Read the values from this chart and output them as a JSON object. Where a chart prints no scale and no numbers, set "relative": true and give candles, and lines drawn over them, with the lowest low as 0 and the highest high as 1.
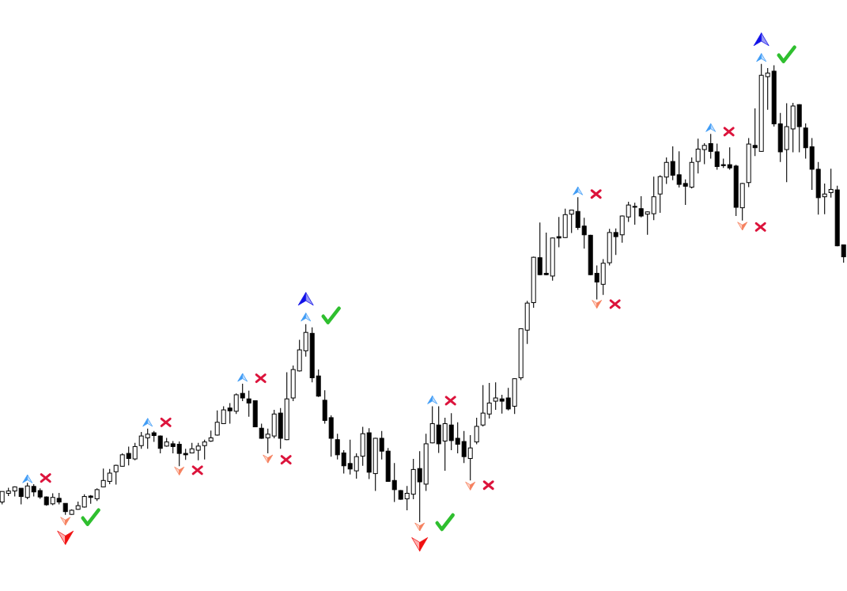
{
  "chart_data": {
    "type": "candlestick",
    "relative": true,
    "categories": [
      null,
      null,
      null,
      null,
      null,
      null,
      null,
      null,
      null,
      null,
      null,
      null,
      null,
      null,
      null,
      null,
      null,
      null,
      null,
      null,
      null,
      null,
      null,
      null,
      null,
      null,
      null,
      null,
      null,
      null,
      null,
      null,
      null,
      null,
      null,
      null,
      null,
      null,
      null,
      null,
      null,
      null,
      null,
      null,
      null,
      null,
      null,
      null,
      null,
      null,
      null,
      null,
      null,
      null,
      null,
      null,
      null,
      null,
      null,
      null,
      null,
      null,
      null,
      null,
      null,
      null,
      null,
      null,
      null,
      null,
      null,
      null,
      null,
      null,
      null,
      null,
      null,
      null,
      null,
      null,
      null,
      null,
      null,
      null,
      null,
      null,
      null,
      null,
      null,
      null,
      null,
      null,
      null,
      null,
      null,
      null,
      null,
      null,
      null,
      null,
      null,
      null,
      null,
      null,
      null,
      null,
      null,
      null,
      null,
      null,
      null,
      null,
      null,
      null,
      null,
      null,
      null,
      null,
      null,
      null,
      null,
      null,
      null,
      null,
      null,
      null,
      null,
      null,
      null,
      null,
      null,
      null,
      null,
      null
    ],
    "ohlc": [
      [
        0.044,
        0.067,
        0.039,
        0.067
      ],
      [
        0.063,
        0.075,
        0.057,
        0.068
      ],
      [
        0.068,
        0.078,
        0.056,
        0.077
      ],
      [
        0.074,
        0.074,
        0.039,
        0.056
      ],
      [
        0.054,
        0.086,
        0.05,
        0.079
      ],
      [
        0.078,
        0.083,
        0.056,
        0.066
      ],
      [
        0.069,
        0.074,
        0.051,
        0.055
      ],
      [
        0.055,
        0.056,
        0.036,
        0.038
      ],
      [
        0.04,
        0.063,
        0.037,
        0.054
      ],
      [
        0.052,
        0.064,
        0.039,
        0.044
      ],
      [
        0.041,
        0.041,
        0.016,
        0.023
      ],
      [
        0.017,
        0.028,
        0.016,
        0.026
      ],
      [
        0.028,
        0.045,
        0.027,
        0.036
      ],
      [
        0.033,
        0.061,
        0.032,
        0.056
      ],
      [
        0.057,
        0.059,
        0.04,
        0.054
      ],
      [
        0.051,
        0.074,
        0.046,
        0.071
      ],
      [
        0.077,
        0.117,
        0.076,
        0.091
      ],
      [
        0.089,
        0.116,
        0.083,
        0.107
      ],
      [
        0.11,
        0.125,
        0.082,
        0.124
      ],
      [
        0.122,
        0.15,
        0.121,
        0.147
      ],
      [
        0.15,
        0.165,
        0.124,
        0.139
      ],
      [
        0.138,
        0.173,
        0.135,
        0.165
      ],
      [
        0.167,
        0.197,
        0.16,
        0.188
      ],
      [
        0.184,
        0.204,
        0.16,
        0.192
      ],
      [
        0.195,
        0.199,
        0.175,
        0.189
      ],
      [
        0.188,
        0.189,
        0.15,
        0.161
      ],
      [
        0.166,
        0.184,
        0.165,
        0.175
      ],
      [
        0.171,
        0.177,
        0.15,
        0.165
      ],
      [
        0.17,
        0.176,
        0.122,
        0.15
      ],
      [
        0.15,
        0.16,
        0.136,
        0.147
      ],
      [
        0.151,
        0.173,
        0.15,
        0.16
      ],
      [
        0.157,
        0.173,
        0.135,
        0.166
      ],
      [
        0.167,
        0.18,
        0.137,
        0.175
      ],
      [
        0.177,
        0.2,
        0.175,
        0.184
      ],
      [
        0.19,
        0.244,
        0.189,
        0.218
      ],
      [
        0.215,
        0.253,
        0.214,
        0.245
      ],
      [
        0.249,
        0.26,
        0.215,
        0.243
      ],
      [
        0.242,
        0.281,
        0.236,
        0.278
      ],
      [
        0.281,
        0.302,
        0.264,
        0.271
      ],
      [
        0.269,
        0.287,
        0.23,
        0.26
      ],
      [
        0.265,
        0.266,
        0.207,
        0.208
      ],
      [
        0.205,
        0.215,
        0.182,
        0.183
      ],
      [
        0.184,
        0.204,
        0.15,
        0.192
      ],
      [
        0.188,
        0.245,
        0.183,
        0.236
      ],
      [
        0.238,
        0.249,
        0.16,
        0.183
      ],
      [
        0.18,
        0.327,
        0.179,
        0.269
      ],
      [
        0.271,
        0.342,
        0.264,
        0.333
      ],
      [
        0.33,
        0.398,
        0.329,
        0.376
      ],
      [
        0.374,
        0.432,
        0.361,
        0.414
      ],
      [
        0.412,
        0.425,
        0.305,
        0.315
      ],
      [
        0.319,
        0.333,
        0.273,
        0.275
      ],
      [
        0.266,
        0.288,
        0.215,
        0.222
      ],
      [
        0.228,
        0.233,
        0.143,
        0.183
      ],
      [
        0.18,
        0.193,
        0.137,
        0.147
      ],
      [
        0.151,
        0.157,
        0.106,
        0.123
      ],
      [
        0.128,
        0.18,
        0.104,
        0.116
      ],
      [
        0.112,
        0.15,
        0.095,
        0.143
      ],
      [
        0.144,
        0.208,
        0.123,
        0.193
      ],
      [
        0.195,
        0.205,
        0.094,
        0.109
      ],
      [
        0.106,
        0.184,
        0.068,
        0.183
      ],
      [
        0.183,
        0.199,
        0.137,
        0.155
      ],
      [
        0.155,
        0.162,
        0.088,
        0.089
      ],
      [
        0.091,
        0.129,
        0.044,
        0.071
      ],
      [
        0.069,
        0.07,
        0.049,
        0.05
      ],
      [
        0.051,
        0.079,
        0.026,
        0.063
      ],
      [
        0.061,
        0.138,
        0.05,
        0.115
      ],
      [
        0.117,
        0.155,
        0,
        0.088
      ],
      [
        0.083,
        0.193,
        0.068,
        0.171
      ],
      [
        0.173,
        0.253,
        0.172,
        0.215
      ],
      [
        0.212,
        0.253,
        0.151,
        0.171
      ],
      [
        0.177,
        0.228,
        0.112,
        0.215
      ],
      [
        0.212,
        0.238,
        0.157,
        0.178
      ],
      [
        0.183,
        0.218,
        0.15,
        0.17
      ],
      [
        0.176,
        0.199,
        0.129,
        0.143
      ],
      [
        0.139,
        0.19,
        0.091,
        0.162
      ],
      [
        0.175,
        0.228,
        0.17,
        0.209
      ],
      [
        0.212,
        0.299,
        0.209,
        0.238
      ],
      [
        0.236,
        0.304,
        0.226,
        0.26
      ],
      [
        0.264,
        0.305,
        0.245,
        0.271
      ],
      [
        0.269,
        0.278,
        0.237,
        0.264
      ],
      [
        0.271,
        0.293,
        0.244,
        0.247
      ],
      [
        0.253,
        0.314,
        0.236,
        0.313
      ],
      [
        0.315,
        0.423,
        0.31,
        0.422
      ],
      [
        0.419,
        0.483,
        0.389,
        0.478
      ],
      [
        0.479,
        0.579,
        0.468,
        0.578
      ],
      [
        0.577,
        0.654,
        0.539,
        0.54
      ],
      [
        0.543,
        0.632,
        0.539,
        0.54
      ],
      [
        0.537,
        0.621,
        0.527,
        0.62
      ],
      [
        0.623,
        0.666,
        0.6,
        0.62
      ],
      [
        0.621,
        0.684,
        0.62,
        0.671
      ],
      [
        0.672,
        0.682,
        0.631,
        0.681
      ],
      [
        0.678,
        0.709,
        0.638,
        0.643
      ],
      [
        0.646,
        0.664,
        0.597,
        0.627
      ],
      [
        0.626,
        0.627,
        0.539,
        0.54
      ],
      [
        0.543,
        0.56,
        0.486,
        0.524
      ],
      [
        0.519,
        0.574,
        0.496,
        0.565
      ],
      [
        0.566,
        0.64,
        0.56,
        0.632
      ],
      [
        0.632,
        0.641,
        0.583,
        0.623
      ],
      [
        0.627,
        0.669,
        0.61,
        0.668
      ],
      [
        0.666,
        0.699,
        0.655,
        0.692
      ],
      [
        0.688,
        0.697,
        0.649,
        0.689
      ],
      [
        0.684,
        0.711,
        0.665,
        0.668
      ],
      [
        0.672,
        0.678,
        0.627,
        0.677
      ],
      [
        0.673,
        0.754,
        0.659,
        0.71
      ],
      [
        0.716,
        0.757,
        0.675,
        0.754
      ],
      [
        0.753,
        0.796,
        0.738,
        0.785
      ],
      [
        0.787,
        0.82,
        0.746,
        0.757
      ],
      [
        0.758,
        0.809,
        0.73,
        0.737
      ],
      [
        0.739,
        0.748,
        0.692,
        0.733
      ],
      [
        0.731,
        0.796,
        0.728,
        0.785
      ],
      [
        0.787,
        0.837,
        0.761,
        0.814
      ],
      [
        0.813,
        0.827,
        0.781,
        0.822
      ],
      [
        0.826,
        0.847,
        0.793,
        0.809
      ],
      [
        0.808,
        0.826,
        0.769,
        0.776
      ],
      [
        0.78,
        0.793,
        0.773,
        0.778
      ],
      [
        0.78,
        0.818,
        0.769,
        0.773
      ],
      [
        0.777,
        0.78,
        0.668,
        0.687
      ],
      [
        0.686,
        0.74,
        0.658,
        0.739
      ],
      [
        0.741,
        0.838,
        0.731,
        0.825
      ],
      [
        0.822,
        0.903,
        0.799,
        0.817
      ],
      [
        0.809,
        1,
        0.808,
        0.975
      ],
      [
        0.972,
        0.991,
        0.9,
        0.98
      ],
      [
        0.984,
        0.997,
        0.863,
        0.869
      ],
      [
        0.869,
        0.893,
        0.786,
        0.808
      ],
      [
        0.813,
        0.914,
        0.742,
        0.863
      ],
      [
        0.858,
        0.915,
        0.807,
        0.908
      ],
      [
        0.911,
        0.912,
        0.807,
        0.863
      ],
      [
        0.86,
        0.87,
        0.793,
        0.817
      ],
      [
        0.819,
        0.838,
        0.725,
        0.77
      ],
      [
        0.77,
        0.786,
        0.671,
        0.708
      ],
      [
        0.71,
        0.739,
        0.672,
        0.716
      ],
      [
        0.719,
        0.771,
        0.708,
        0.726
      ],
      [
        0.725,
        0.734,
        0.602,
        0.603
      ],
      [
        0.605,
        0.606,
        0.566,
        0.579
      ]
    ]
  }
}
